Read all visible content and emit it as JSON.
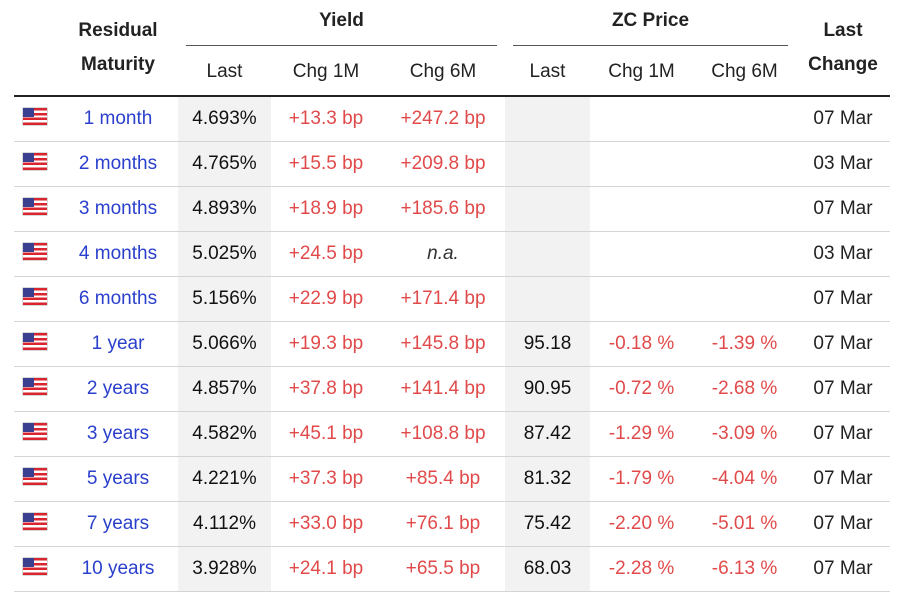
{
  "header": {
    "maturity_line1": "Residual",
    "maturity_line2": "Maturity",
    "yield_group": "Yield",
    "zc_group": "ZC Price",
    "last_change_line1": "Last",
    "last_change_line2": "Change",
    "yield_cols": [
      "Last",
      "Chg 1M",
      "Chg 6M"
    ],
    "zc_cols": [
      "Last",
      "Chg 1M",
      "Chg 6M"
    ]
  },
  "colors": {
    "link": "#2a3fcc",
    "negative": "#e14a4a",
    "shade": "#f2f2f2"
  },
  "rows": [
    {
      "flag": "us-flag-icon",
      "maturity": "1 month",
      "yield_last": "4.693%",
      "yield_chg1m": "+13.3 bp",
      "yield_chg6m": "+247.2 bp",
      "zc_last": "",
      "zc_chg1m": "",
      "zc_chg6m": "",
      "last_change": "07 Mar"
    },
    {
      "flag": "us-flag-icon",
      "maturity": "2 months",
      "yield_last": "4.765%",
      "yield_chg1m": "+15.5 bp",
      "yield_chg6m": "+209.8 bp",
      "zc_last": "",
      "zc_chg1m": "",
      "zc_chg6m": "",
      "last_change": "03 Mar"
    },
    {
      "flag": "us-flag-icon",
      "maturity": "3 months",
      "yield_last": "4.893%",
      "yield_chg1m": "+18.9 bp",
      "yield_chg6m": "+185.6 bp",
      "zc_last": "",
      "zc_chg1m": "",
      "zc_chg6m": "",
      "last_change": "07 Mar"
    },
    {
      "flag": "us-flag-icon",
      "maturity": "4 months",
      "yield_last": "5.025%",
      "yield_chg1m": "+24.5 bp",
      "yield_chg6m": "n.a.",
      "zc_last": "",
      "zc_chg1m": "",
      "zc_chg6m": "",
      "last_change": "03 Mar"
    },
    {
      "flag": "us-flag-icon",
      "maturity": "6 months",
      "yield_last": "5.156%",
      "yield_chg1m": "+22.9 bp",
      "yield_chg6m": "+171.4 bp",
      "zc_last": "",
      "zc_chg1m": "",
      "zc_chg6m": "",
      "last_change": "07 Mar"
    },
    {
      "flag": "us-flag-icon",
      "maturity": "1 year",
      "yield_last": "5.066%",
      "yield_chg1m": "+19.3 bp",
      "yield_chg6m": "+145.8 bp",
      "zc_last": "95.18",
      "zc_chg1m": "-0.18 %",
      "zc_chg6m": "-1.39 %",
      "last_change": "07 Mar"
    },
    {
      "flag": "us-flag-icon",
      "maturity": "2 years",
      "yield_last": "4.857%",
      "yield_chg1m": "+37.8 bp",
      "yield_chg6m": "+141.4 bp",
      "zc_last": "90.95",
      "zc_chg1m": "-0.72 %",
      "zc_chg6m": "-2.68 %",
      "last_change": "07 Mar"
    },
    {
      "flag": "us-flag-icon",
      "maturity": "3 years",
      "yield_last": "4.582%",
      "yield_chg1m": "+45.1 bp",
      "yield_chg6m": "+108.8 bp",
      "zc_last": "87.42",
      "zc_chg1m": "-1.29 %",
      "zc_chg6m": "-3.09 %",
      "last_change": "07 Mar"
    },
    {
      "flag": "us-flag-icon",
      "maturity": "5 years",
      "yield_last": "4.221%",
      "yield_chg1m": "+37.3 bp",
      "yield_chg6m": "+85.4 bp",
      "zc_last": "81.32",
      "zc_chg1m": "-1.79 %",
      "zc_chg6m": "-4.04 %",
      "last_change": "07 Mar"
    },
    {
      "flag": "us-flag-icon",
      "maturity": "7 years",
      "yield_last": "4.112%",
      "yield_chg1m": "+33.0 bp",
      "yield_chg6m": "+76.1 bp",
      "zc_last": "75.42",
      "zc_chg1m": "-2.20 %",
      "zc_chg6m": "-5.01 %",
      "last_change": "07 Mar"
    },
    {
      "flag": "us-flag-icon",
      "maturity": "10 years",
      "yield_last": "3.928%",
      "yield_chg1m": "+24.1 bp",
      "yield_chg6m": "+65.5 bp",
      "zc_last": "68.03",
      "zc_chg1m": "-2.28 %",
      "zc_chg6m": "-6.13 %",
      "last_change": "07 Mar"
    }
  ]
}
